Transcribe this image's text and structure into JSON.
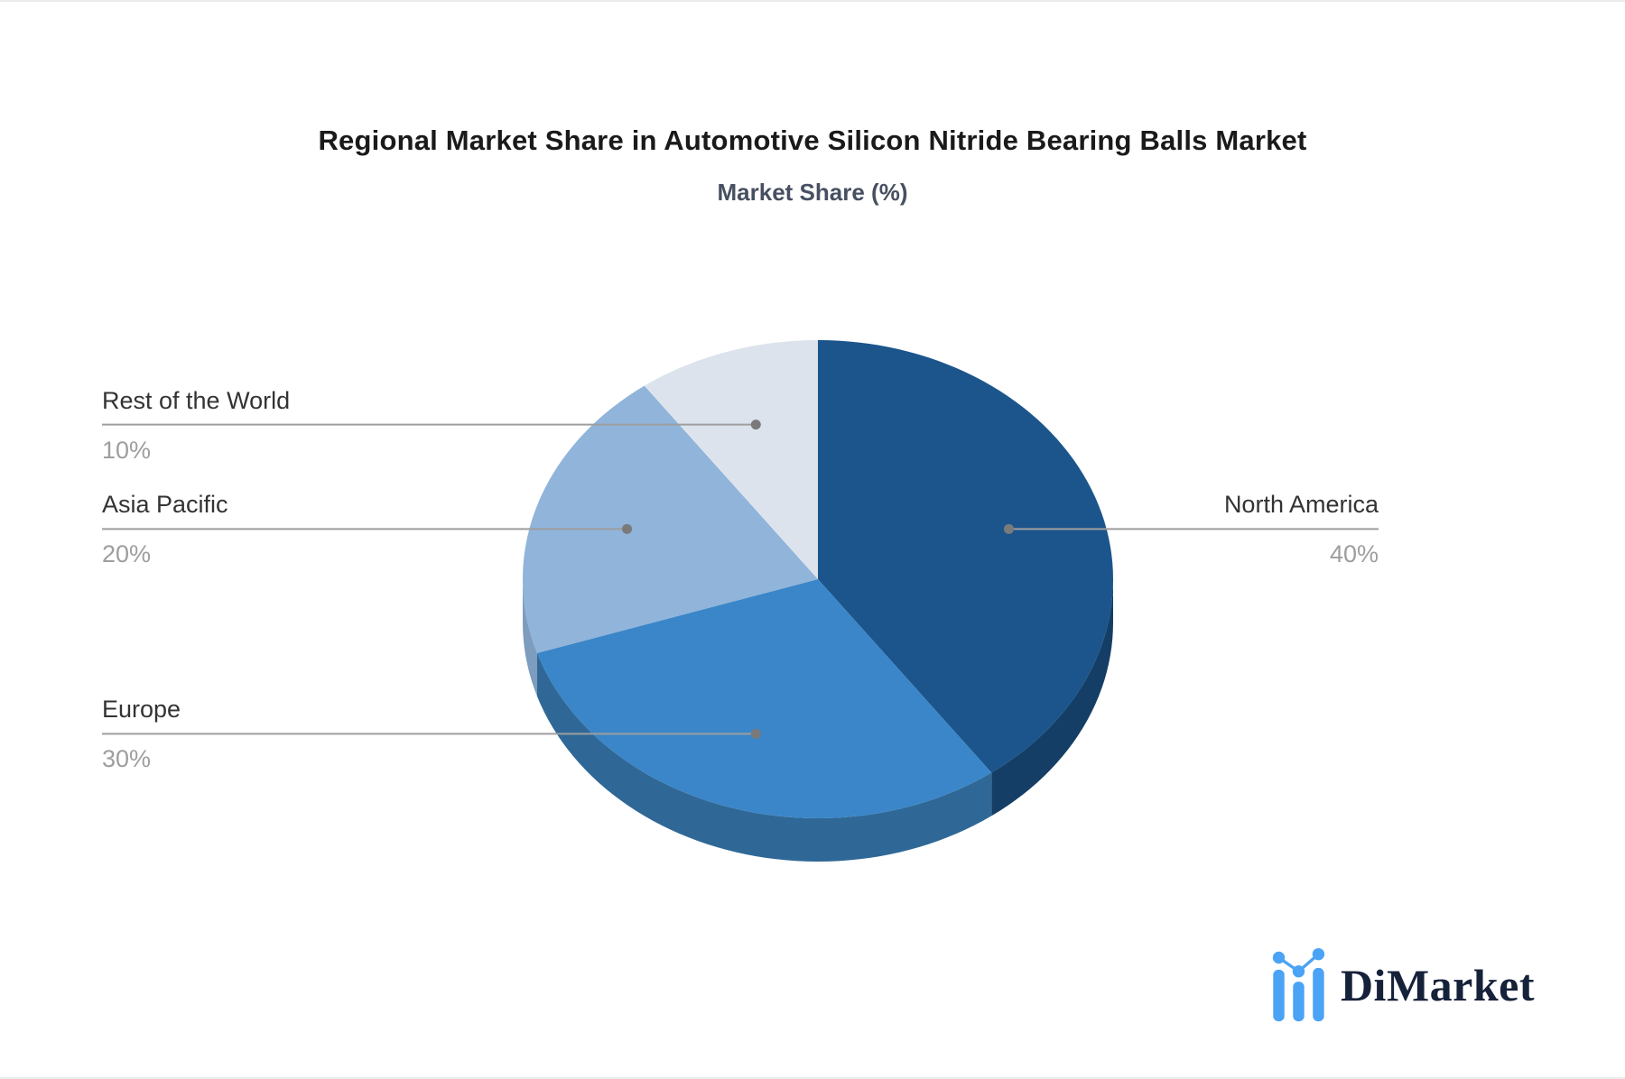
{
  "title": "Regional Market Share in Automotive Silicon Nitride Bearing Balls Market",
  "subtitle": "Market Share (%)",
  "brand": {
    "name": "DiMarket",
    "icon": "bar-line-chart-icon",
    "icon_color": "#4aa3f5",
    "text_color": "#16213a"
  },
  "chart_data": {
    "type": "pie",
    "title": "Regional Market Share in Automotive Silicon Nitride Bearing Balls Market",
    "subtitle": "Market Share (%)",
    "unit": "%",
    "start_angle_deg": 0,
    "direction": "clockwise",
    "style": "3d",
    "legend_position": "none",
    "labels_show_percent": true,
    "slices": [
      {
        "label": "North America",
        "value": 40,
        "pct_text": "40%",
        "color": "#1b558c",
        "shade": "#143e66",
        "label_side": "right"
      },
      {
        "label": "Europe",
        "value": 30,
        "pct_text": "30%",
        "color": "#3a86c8",
        "shade": "#2f6897",
        "label_side": "left"
      },
      {
        "label": "Asia Pacific",
        "value": 20,
        "pct_text": "20%",
        "color": "#90b4da",
        "shade": "#7e9cbe",
        "label_side": "left"
      },
      {
        "label": "Rest of the World",
        "value": 10,
        "pct_text": "10%",
        "color": "#dde3ed",
        "shade": "#b9c2d1",
        "label_side": "left"
      }
    ],
    "leader_style": {
      "line_color": "#9e9e9e",
      "dot_color": "#7a7a7a",
      "label_color": "#333333",
      "pct_color": "#9e9e9e"
    }
  }
}
